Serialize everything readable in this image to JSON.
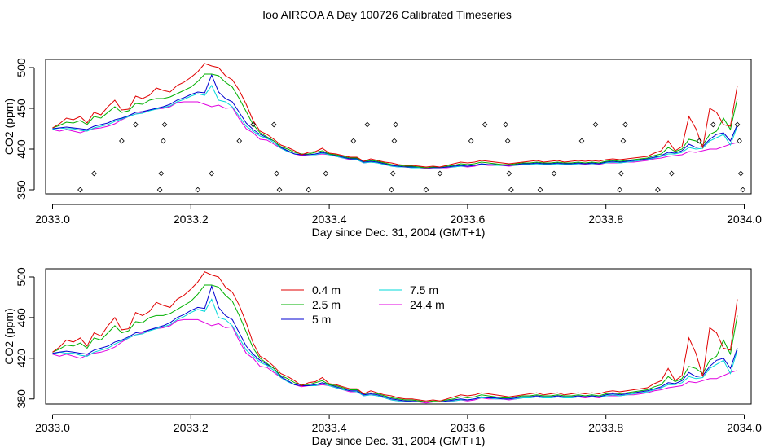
{
  "title": "Ioo AIRCOA A  Day 100726  Calibrated Timeseries",
  "chart_data": [
    {
      "type": "line",
      "title": "Ioo AIRCOA A  Day 100726  Calibrated Timeseries",
      "xlabel": "Day since Dec. 31, 2004 (GMT+1)",
      "ylabel": "CO2 (ppm)",
      "xlim": [
        2032.99,
        2034.01
      ],
      "ylim": [
        345,
        510
      ],
      "xticks": [
        2033.0,
        2033.2,
        2033.4,
        2033.6,
        2033.8,
        2034.0
      ],
      "xtick_labels": [
        "2033.0",
        "2033.2",
        "2033.4",
        "2033.6",
        "2033.8",
        "2034.0"
      ],
      "yticks": [
        350,
        400,
        450,
        500
      ],
      "ytick_labels": [
        "350",
        "400",
        "450",
        "500"
      ],
      "grid": false,
      "x": [
        2033.0,
        2033.01,
        2033.02,
        2033.03,
        2033.04,
        2033.05,
        2033.06,
        2033.07,
        2033.08,
        2033.09,
        2033.1,
        2033.11,
        2033.12,
        2033.13,
        2033.14,
        2033.15,
        2033.16,
        2033.17,
        2033.18,
        2033.19,
        2033.2,
        2033.21,
        2033.22,
        2033.23,
        2033.24,
        2033.25,
        2033.26,
        2033.27,
        2033.28,
        2033.29,
        2033.3,
        2033.31,
        2033.32,
        2033.33,
        2033.34,
        2033.35,
        2033.36,
        2033.37,
        2033.38,
        2033.39,
        2033.4,
        2033.41,
        2033.42,
        2033.43,
        2033.44,
        2033.45,
        2033.46,
        2033.47,
        2033.48,
        2033.49,
        2033.5,
        2033.51,
        2033.52,
        2033.53,
        2033.54,
        2033.55,
        2033.56,
        2033.57,
        2033.58,
        2033.59,
        2033.6,
        2033.61,
        2033.62,
        2033.63,
        2033.64,
        2033.65,
        2033.66,
        2033.67,
        2033.68,
        2033.69,
        2033.7,
        2033.71,
        2033.72,
        2033.73,
        2033.74,
        2033.75,
        2033.76,
        2033.77,
        2033.78,
        2033.79,
        2033.8,
        2033.81,
        2033.82,
        2033.83,
        2033.84,
        2033.85,
        2033.86,
        2033.87,
        2033.88,
        2033.89,
        2033.9,
        2033.91,
        2033.92,
        2033.93,
        2033.94,
        2033.95,
        2033.96,
        2033.97,
        2033.98,
        2033.99
      ],
      "series": [
        {
          "name": "0.4 m",
          "color": "#e00000",
          "values": [
            426,
            431,
            438,
            436,
            440,
            432,
            445,
            442,
            452,
            460,
            448,
            449,
            465,
            462,
            466,
            475,
            472,
            470,
            478,
            482,
            488,
            495,
            505,
            502,
            500,
            490,
            485,
            472,
            455,
            435,
            422,
            418,
            412,
            405,
            402,
            398,
            393,
            396,
            397,
            401,
            395,
            394,
            392,
            390,
            390,
            385,
            388,
            386,
            384,
            383,
            381,
            380,
            380,
            379,
            378,
            379,
            378,
            380,
            382,
            384,
            383,
            384,
            386,
            385,
            384,
            383,
            382,
            383,
            384,
            385,
            386,
            384,
            385,
            386,
            384,
            385,
            386,
            385,
            386,
            385,
            387,
            388,
            387,
            388,
            389,
            390,
            391,
            395,
            398,
            410,
            398,
            403,
            440,
            425,
            402,
            450,
            445,
            430,
            428,
            478
          ]
        },
        {
          "name": "2.5 m",
          "color": "#00b000",
          "values": [
            426,
            429,
            433,
            432,
            435,
            430,
            440,
            438,
            445,
            452,
            445,
            447,
            456,
            455,
            460,
            462,
            462,
            464,
            468,
            472,
            476,
            483,
            492,
            492,
            490,
            482,
            476,
            462,
            446,
            430,
            420,
            415,
            410,
            403,
            400,
            396,
            394,
            394,
            396,
            398,
            394,
            393,
            391,
            389,
            389,
            385,
            386,
            385,
            383,
            381,
            380,
            379,
            379,
            378,
            377,
            378,
            378,
            379,
            380,
            382,
            381,
            382,
            384,
            383,
            382,
            381,
            381,
            382,
            383,
            383,
            384,
            383,
            383,
            384,
            383,
            383,
            384,
            383,
            384,
            383,
            385,
            386,
            385,
            386,
            387,
            388,
            389,
            392,
            394,
            402,
            397,
            400,
            412,
            410,
            405,
            418,
            422,
            438,
            424,
            462
          ]
        },
        {
          "name": "5 m",
          "color": "#0000d0",
          "values": [
            425,
            426,
            427,
            426,
            425,
            424,
            428,
            430,
            432,
            436,
            438,
            441,
            445,
            446,
            448,
            450,
            452,
            455,
            460,
            463,
            467,
            470,
            469,
            491,
            470,
            462,
            458,
            445,
            432,
            424,
            418,
            414,
            410,
            402,
            398,
            394,
            393,
            393,
            394,
            396,
            394,
            392,
            390,
            388,
            388,
            384,
            385,
            384,
            382,
            380,
            379,
            378,
            378,
            378,
            377,
            377,
            377,
            378,
            379,
            380,
            379,
            380,
            382,
            381,
            381,
            380,
            380,
            381,
            382,
            382,
            383,
            382,
            382,
            383,
            382,
            382,
            383,
            382,
            383,
            382,
            384,
            385,
            384,
            385,
            386,
            387,
            388,
            390,
            392,
            396,
            395,
            398,
            406,
            402,
            403,
            412,
            418,
            420,
            410,
            430
          ]
        },
        {
          "name": "7.5 m",
          "color": "#00d8d8",
          "values": [
            424,
            426,
            425,
            425,
            423,
            422,
            426,
            428,
            430,
            434,
            437,
            440,
            443,
            444,
            447,
            449,
            451,
            453,
            458,
            461,
            465,
            468,
            466,
            478,
            460,
            458,
            452,
            440,
            428,
            422,
            416,
            413,
            408,
            401,
            397,
            394,
            393,
            393,
            393,
            395,
            393,
            391,
            389,
            388,
            387,
            383,
            384,
            383,
            381,
            379,
            378,
            378,
            377,
            377,
            377,
            377,
            377,
            378,
            378,
            379,
            379,
            380,
            381,
            381,
            380,
            380,
            380,
            380,
            381,
            381,
            382,
            381,
            381,
            382,
            381,
            381,
            382,
            382,
            382,
            382,
            383,
            384,
            383,
            384,
            385,
            386,
            387,
            389,
            391,
            394,
            394,
            396,
            402,
            400,
            401,
            410,
            414,
            418,
            405,
            428
          ]
        },
        {
          "name": "24.4 m",
          "color": "#e000e0",
          "values": [
            424,
            422,
            424,
            422,
            420,
            423,
            425,
            426,
            428,
            431,
            436,
            440,
            443,
            445,
            448,
            449,
            450,
            452,
            457,
            458,
            458,
            458,
            455,
            452,
            454,
            450,
            451,
            437,
            425,
            420,
            412,
            411,
            406,
            401,
            397,
            394,
            392,
            393,
            393,
            394,
            393,
            391,
            389,
            387,
            387,
            383,
            384,
            383,
            381,
            379,
            378,
            378,
            377,
            377,
            376,
            377,
            377,
            377,
            378,
            379,
            378,
            379,
            381,
            380,
            380,
            380,
            379,
            380,
            381,
            381,
            382,
            381,
            381,
            382,
            381,
            381,
            382,
            381,
            382,
            381,
            383,
            383,
            383,
            384,
            384,
            385,
            386,
            388,
            389,
            391,
            392,
            393,
            397,
            396,
            398,
            400,
            400,
            403,
            406,
            408
          ]
        }
      ]
    },
    {
      "type": "line",
      "xlabel": "Day since Dec. 31, 2004 (GMT+1)",
      "ylabel": "CO2 (ppm)",
      "xlim": [
        2032.99,
        2034.01
      ],
      "ylim": [
        375,
        508
      ],
      "xticks": [
        2033.0,
        2033.2,
        2033.4,
        2033.6,
        2033.8,
        2034.0
      ],
      "xtick_labels": [
        "2033.0",
        "2033.2",
        "2033.4",
        "2033.6",
        "2033.8",
        "2034.0"
      ],
      "yticks": [
        380,
        420,
        460,
        500
      ],
      "ytick_labels": [
        "380",
        "420",
        "460",
        "500"
      ],
      "grid": false,
      "legend": "top-left",
      "legend_labels": [
        "0.4 m",
        "2.5 m",
        "5 m",
        "7.5 m",
        "24.4 m"
      ]
    }
  ]
}
